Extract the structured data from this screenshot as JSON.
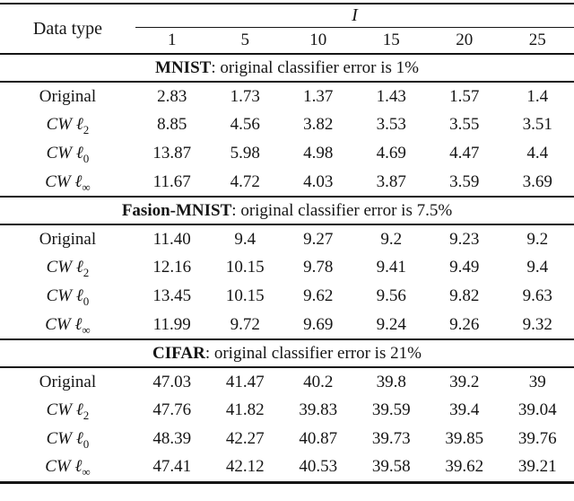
{
  "table": {
    "corner_label": "Data type",
    "group_label": "I",
    "columns": [
      "1",
      "5",
      "10",
      "15",
      "20",
      "25"
    ],
    "sections": [
      {
        "title": {
          "name": "MNIST",
          "rest": ": original classifier error is 1%"
        },
        "rows": [
          {
            "label": {
              "base": "Original",
              "sub": ""
            },
            "values": [
              "2.83",
              "1.73",
              "1.37",
              "1.43",
              "1.57",
              "1.4"
            ]
          },
          {
            "label": {
              "base": "CW ℓ",
              "sub": "2"
            },
            "values": [
              "8.85",
              "4.56",
              "3.82",
              "3.53",
              "3.55",
              "3.51"
            ]
          },
          {
            "label": {
              "base": "CW ℓ",
              "sub": "0"
            },
            "values": [
              "13.87",
              "5.98",
              "4.98",
              "4.69",
              "4.47",
              "4.4"
            ]
          },
          {
            "label": {
              "base": "CW ℓ",
              "sub": "∞"
            },
            "values": [
              "11.67",
              "4.72",
              "4.03",
              "3.87",
              "3.59",
              "3.69"
            ]
          }
        ]
      },
      {
        "title": {
          "name": "Fasion-MNIST",
          "rest": ": original classifier error is 7.5%"
        },
        "rows": [
          {
            "label": {
              "base": "Original",
              "sub": ""
            },
            "values": [
              "11.40",
              "9.4",
              "9.27",
              "9.2",
              "9.23",
              "9.2"
            ]
          },
          {
            "label": {
              "base": "CW ℓ",
              "sub": "2"
            },
            "values": [
              "12.16",
              "10.15",
              "9.78",
              "9.41",
              "9.49",
              "9.4"
            ]
          },
          {
            "label": {
              "base": "CW ℓ",
              "sub": "0"
            },
            "values": [
              "13.45",
              "10.15",
              "9.62",
              "9.56",
              "9.82",
              "9.63"
            ]
          },
          {
            "label": {
              "base": "CW ℓ",
              "sub": "∞"
            },
            "values": [
              "11.99",
              "9.72",
              "9.69",
              "9.24",
              "9.26",
              "9.32"
            ]
          }
        ]
      },
      {
        "title": {
          "name": "CIFAR",
          "rest": ": original classifier error is 21%"
        },
        "rows": [
          {
            "label": {
              "base": "Original",
              "sub": ""
            },
            "values": [
              "47.03",
              "41.47",
              "40.2",
              "39.8",
              "39.2",
              "39"
            ]
          },
          {
            "label": {
              "base": "CW ℓ",
              "sub": "2"
            },
            "values": [
              "47.76",
              "41.82",
              "39.83",
              "39.59",
              "39.4",
              "39.04"
            ]
          },
          {
            "label": {
              "base": "CW ℓ",
              "sub": "0"
            },
            "values": [
              "48.39",
              "42.27",
              "40.87",
              "39.73",
              "39.85",
              "39.76"
            ]
          },
          {
            "label": {
              "base": "CW ℓ",
              "sub": "∞"
            },
            "values": [
              "47.41",
              "42.12",
              "40.53",
              "39.58",
              "39.62",
              "39.21"
            ]
          }
        ]
      }
    ]
  }
}
